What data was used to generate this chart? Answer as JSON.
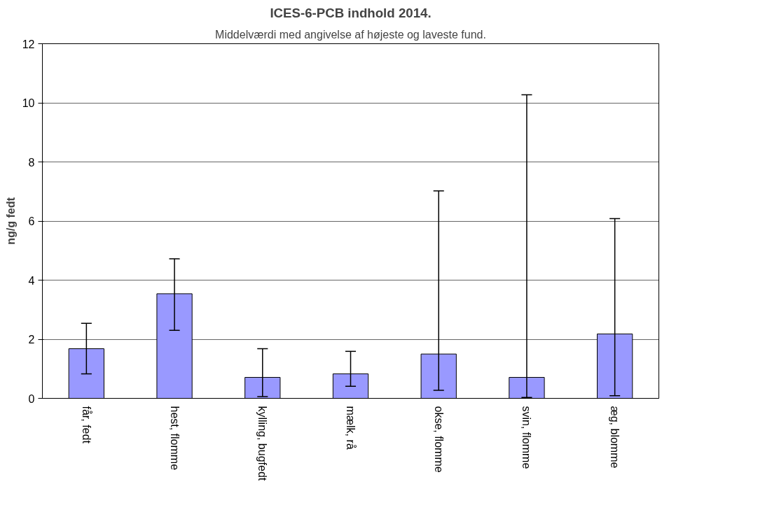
{
  "chart_data": {
    "type": "bar",
    "title": "ICES-6-PCB indhold 2014.",
    "subtitle": "Middelværdi med angivelse af højeste og laveste fund.",
    "ylabel": "ng/g fedt",
    "categories": [
      "får, fedt",
      "hest, flomme",
      "kylling, bugfedt",
      "mælk, rå",
      "okse, flomme",
      "svin, flomme",
      "æg, blomme"
    ],
    "values": [
      1.68,
      3.54,
      0.71,
      0.83,
      1.5,
      0.71,
      2.18
    ],
    "errors": [
      [
        0.83,
        2.54
      ],
      [
        2.3,
        4.72
      ],
      [
        0.06,
        1.68
      ],
      [
        0.41,
        1.59
      ],
      [
        0.27,
        7.02
      ],
      [
        0.03,
        10.27
      ],
      [
        0.09,
        6.08
      ]
    ],
    "color": "#9999ff",
    "ylim": [
      0,
      12
    ],
    "yticks": [
      0,
      2,
      4,
      6,
      8,
      10,
      12
    ],
    "grid": "y"
  }
}
